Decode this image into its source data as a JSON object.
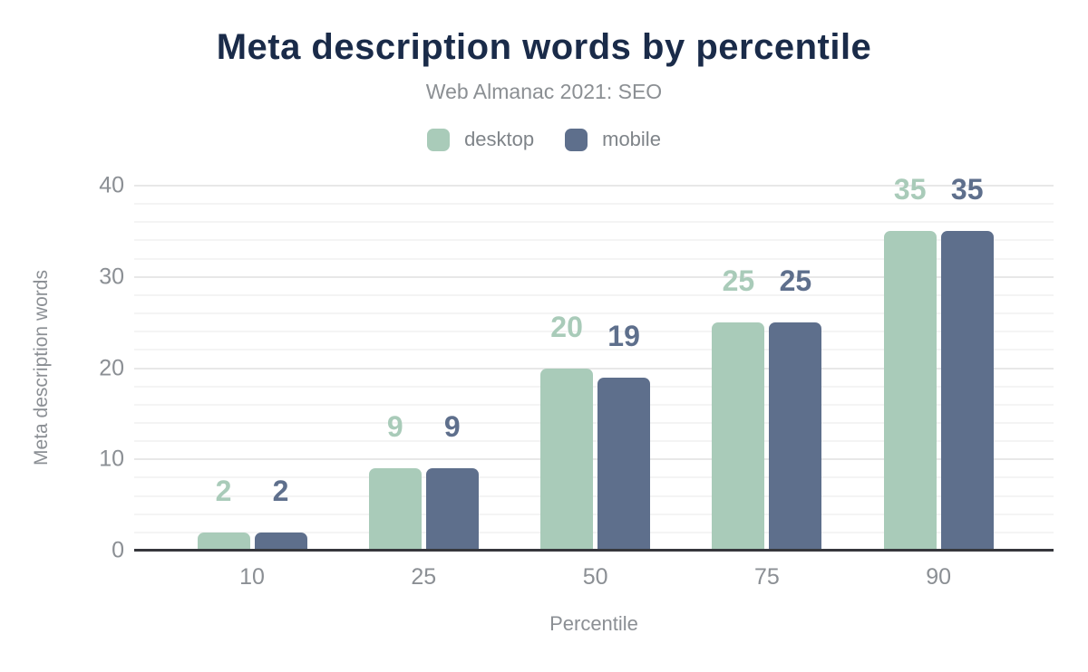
{
  "chart_data": {
    "type": "bar",
    "title": "Meta description words by percentile",
    "subtitle": "Web Almanac 2021: SEO",
    "xlabel": "Percentile",
    "ylabel": "Meta description words",
    "categories": [
      "10",
      "25",
      "50",
      "75",
      "90"
    ],
    "series": [
      {
        "name": "desktop",
        "color": "#a9cbb9",
        "values": [
          2,
          9,
          20,
          25,
          35
        ]
      },
      {
        "name": "mobile",
        "color": "#5e6f8c",
        "values": [
          2,
          9,
          19,
          25,
          35
        ]
      }
    ],
    "ylim": [
      0,
      40
    ],
    "yticks": [
      0,
      10,
      20,
      30,
      40
    ],
    "grid": {
      "major_step": 10,
      "minor_step": 2,
      "shown": true
    },
    "legend_position": "top",
    "bar_value_labels_shown": true
  },
  "colors": {
    "background": "#ffffff",
    "title": "#1a2b49",
    "subtitle": "#8b8f93",
    "axis_text": "#8b8f94",
    "legend_text": "#7f8489",
    "axis_line": "#36373c",
    "grid_major": "#e8e8e8",
    "grid_minor": "#f4f4f4",
    "desktop_series": "#a9cbb9",
    "mobile_series": "#5e6f8c"
  }
}
